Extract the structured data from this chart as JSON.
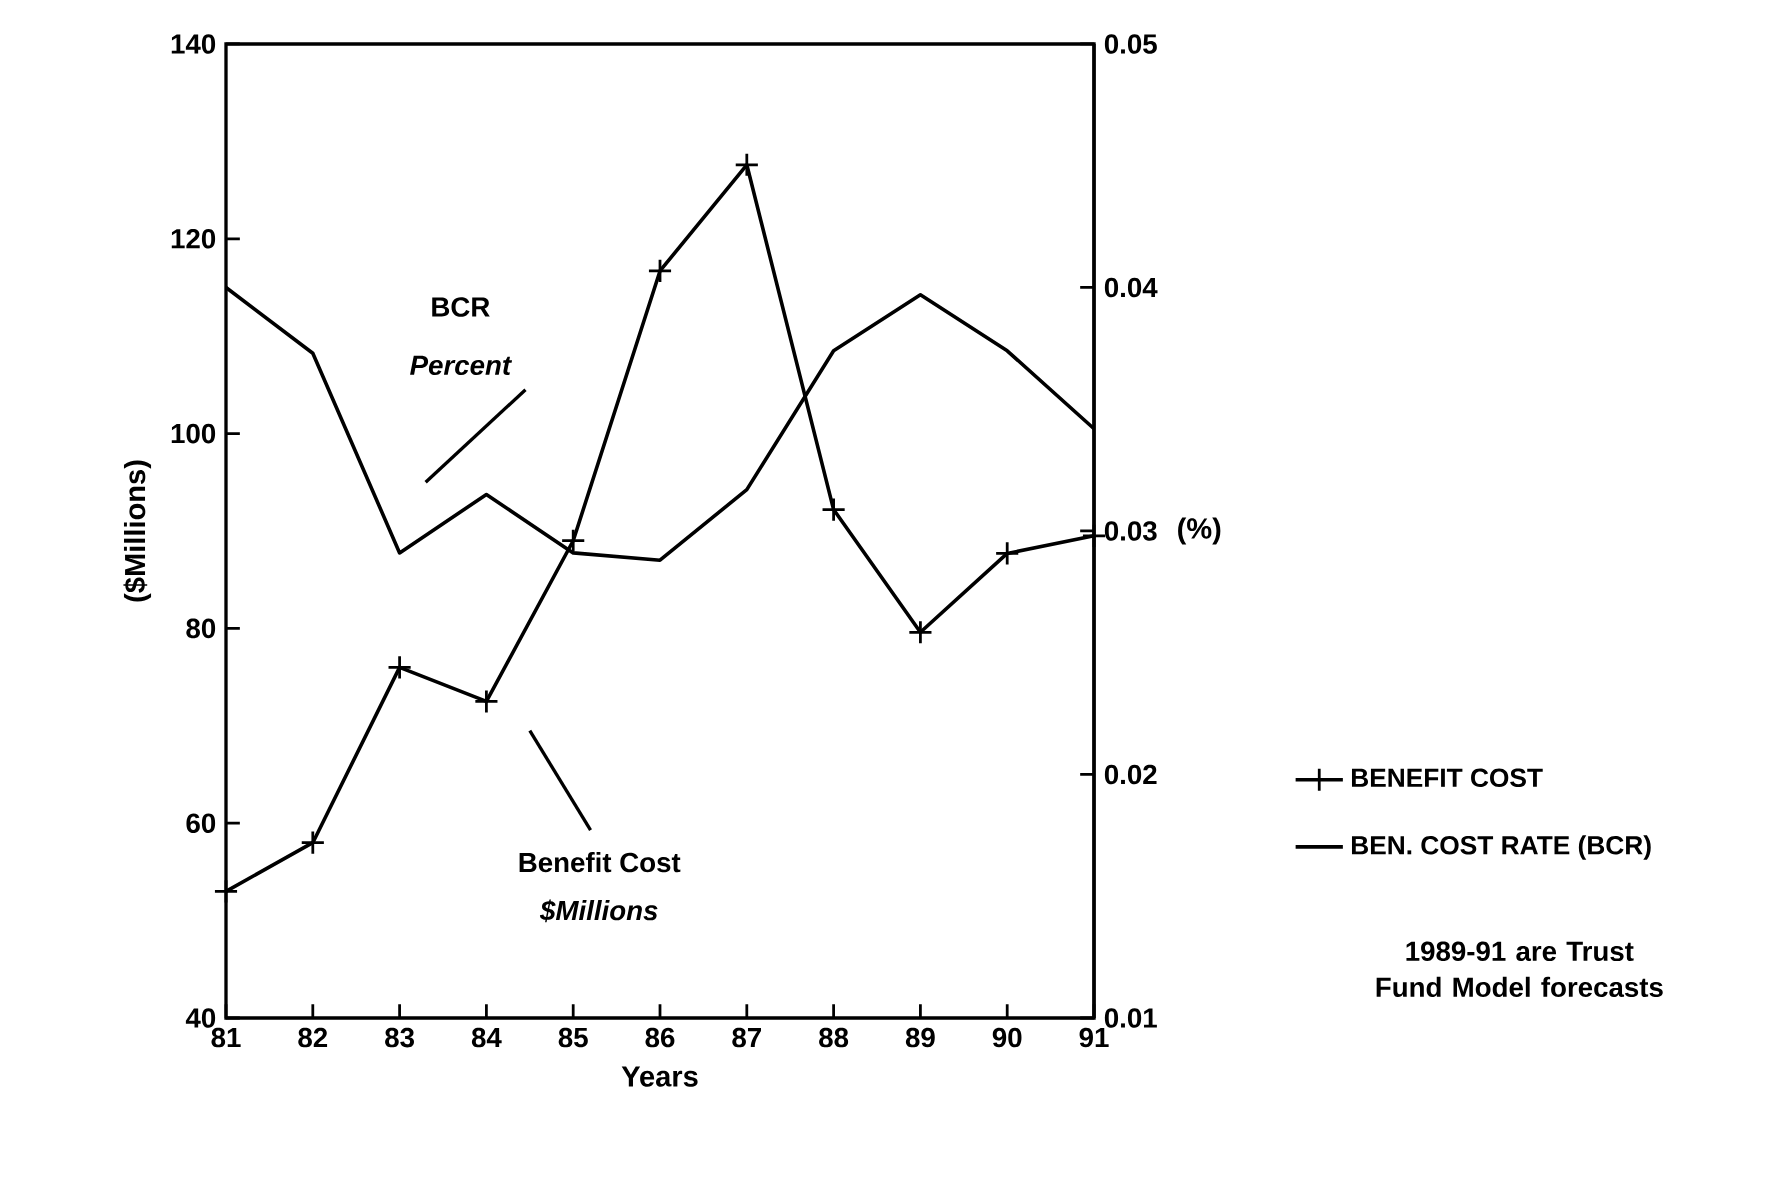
{
  "chart_data": {
    "type": "line",
    "x": [
      81,
      82,
      83,
      84,
      85,
      86,
      87,
      88,
      89,
      90,
      91
    ],
    "xlim": [
      81,
      91
    ],
    "xticks": [
      81,
      82,
      83,
      84,
      85,
      86,
      87,
      88,
      89,
      90,
      91
    ],
    "ylim": [
      40,
      140
    ],
    "yticks": [
      40,
      60,
      80,
      100,
      120,
      140
    ],
    "y2lim": [
      0.01,
      0.05
    ],
    "y2ticks": [
      0.01,
      0.02,
      0.03,
      0.04,
      0.05
    ],
    "xlabel": "Years",
    "ylabel": "($Millions)",
    "y2label": "(%)",
    "series": [
      {
        "name": "BENEFIT COST",
        "color": "#000000",
        "marker": "cross",
        "values": [
          53,
          58,
          76,
          72.5,
          89,
          116.7,
          127.6,
          92.2,
          79.6,
          87.7,
          89.5
        ]
      },
      {
        "name": "BEN. COST RATE (BCR)",
        "color": "#000000",
        "axis": "y2",
        "marker": "none",
        "values": [
          0.04,
          0.0373,
          0.0291,
          0.0315,
          0.0291,
          0.0288,
          0.0317,
          0.0374,
          0.0397,
          0.0374,
          0.0342
        ]
      }
    ],
    "annotations": [
      "BCR",
      "Percent",
      "Benefit Cost",
      "$Millions",
      "1989-91 are Trust Fund Model forecasts"
    ],
    "legend": "right",
    "line_style": "solid",
    "grid": false
  }
}
